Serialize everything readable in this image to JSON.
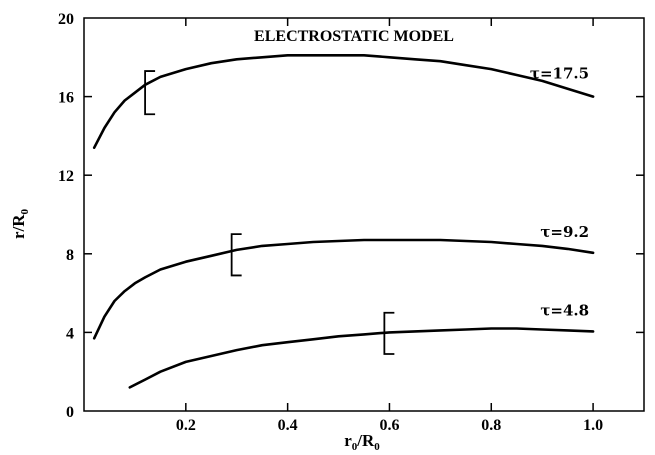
{
  "chart_data": {
    "type": "line",
    "title": "ELECTROSTATIC MODEL",
    "xlabel": {
      "main": "r",
      "sub": "0",
      "tail": "/R",
      "tail_sub": "0"
    },
    "ylabel": {
      "main": "r/R",
      "sub": "0"
    },
    "xlim": [
      0,
      1.1
    ],
    "ylim": [
      0,
      20
    ],
    "xticks": [
      0.2,
      0.4,
      0.6,
      0.8,
      1.0
    ],
    "xtick_labels": [
      "0.2",
      "0.4",
      "0.6",
      "0.8",
      "1.0"
    ],
    "yticks": [
      0,
      4,
      8,
      12,
      16,
      20
    ],
    "ytick_labels": [
      "0",
      "4",
      "8",
      "12",
      "16",
      "20"
    ],
    "grid": false,
    "series": [
      {
        "name": "τ=17.5",
        "x": [
          0.02,
          0.04,
          0.06,
          0.08,
          0.1,
          0.12,
          0.15,
          0.2,
          0.25,
          0.3,
          0.35,
          0.4,
          0.45,
          0.5,
          0.55,
          0.6,
          0.65,
          0.7,
          0.75,
          0.8,
          0.85,
          0.9,
          0.95,
          1.0
        ],
        "y": [
          13.4,
          14.4,
          15.2,
          15.8,
          16.2,
          16.6,
          17.0,
          17.4,
          17.7,
          17.9,
          18.0,
          18.1,
          18.1,
          18.1,
          18.1,
          18.0,
          17.9,
          17.8,
          17.6,
          17.4,
          17.1,
          16.8,
          16.4,
          16.0
        ],
        "error_bar": {
          "x": 0.12,
          "y_low": 15.1,
          "y_high": 17.3
        }
      },
      {
        "name": "τ=9.2",
        "x": [
          0.02,
          0.04,
          0.06,
          0.08,
          0.1,
          0.12,
          0.15,
          0.2,
          0.25,
          0.3,
          0.35,
          0.4,
          0.45,
          0.5,
          0.55,
          0.6,
          0.65,
          0.7,
          0.75,
          0.8,
          0.85,
          0.9,
          0.95,
          1.0
        ],
        "y": [
          3.7,
          4.8,
          5.6,
          6.1,
          6.5,
          6.8,
          7.2,
          7.6,
          7.9,
          8.2,
          8.4,
          8.5,
          8.6,
          8.65,
          8.7,
          8.7,
          8.7,
          8.7,
          8.65,
          8.6,
          8.5,
          8.4,
          8.25,
          8.05
        ],
        "error_bar": {
          "x": 0.29,
          "y_low": 6.9,
          "y_high": 9.0
        }
      },
      {
        "name": "τ=4.8",
        "x": [
          0.09,
          0.12,
          0.15,
          0.2,
          0.25,
          0.3,
          0.35,
          0.4,
          0.45,
          0.5,
          0.55,
          0.6,
          0.65,
          0.7,
          0.75,
          0.8,
          0.85,
          0.9,
          0.95,
          1.0
        ],
        "y": [
          1.2,
          1.6,
          2.0,
          2.5,
          2.8,
          3.1,
          3.35,
          3.5,
          3.65,
          3.8,
          3.9,
          4.0,
          4.05,
          4.1,
          4.15,
          4.2,
          4.2,
          4.15,
          4.1,
          4.05
        ],
        "error_bar": {
          "x": 0.59,
          "y_low": 2.9,
          "y_high": 5.0
        }
      }
    ]
  }
}
